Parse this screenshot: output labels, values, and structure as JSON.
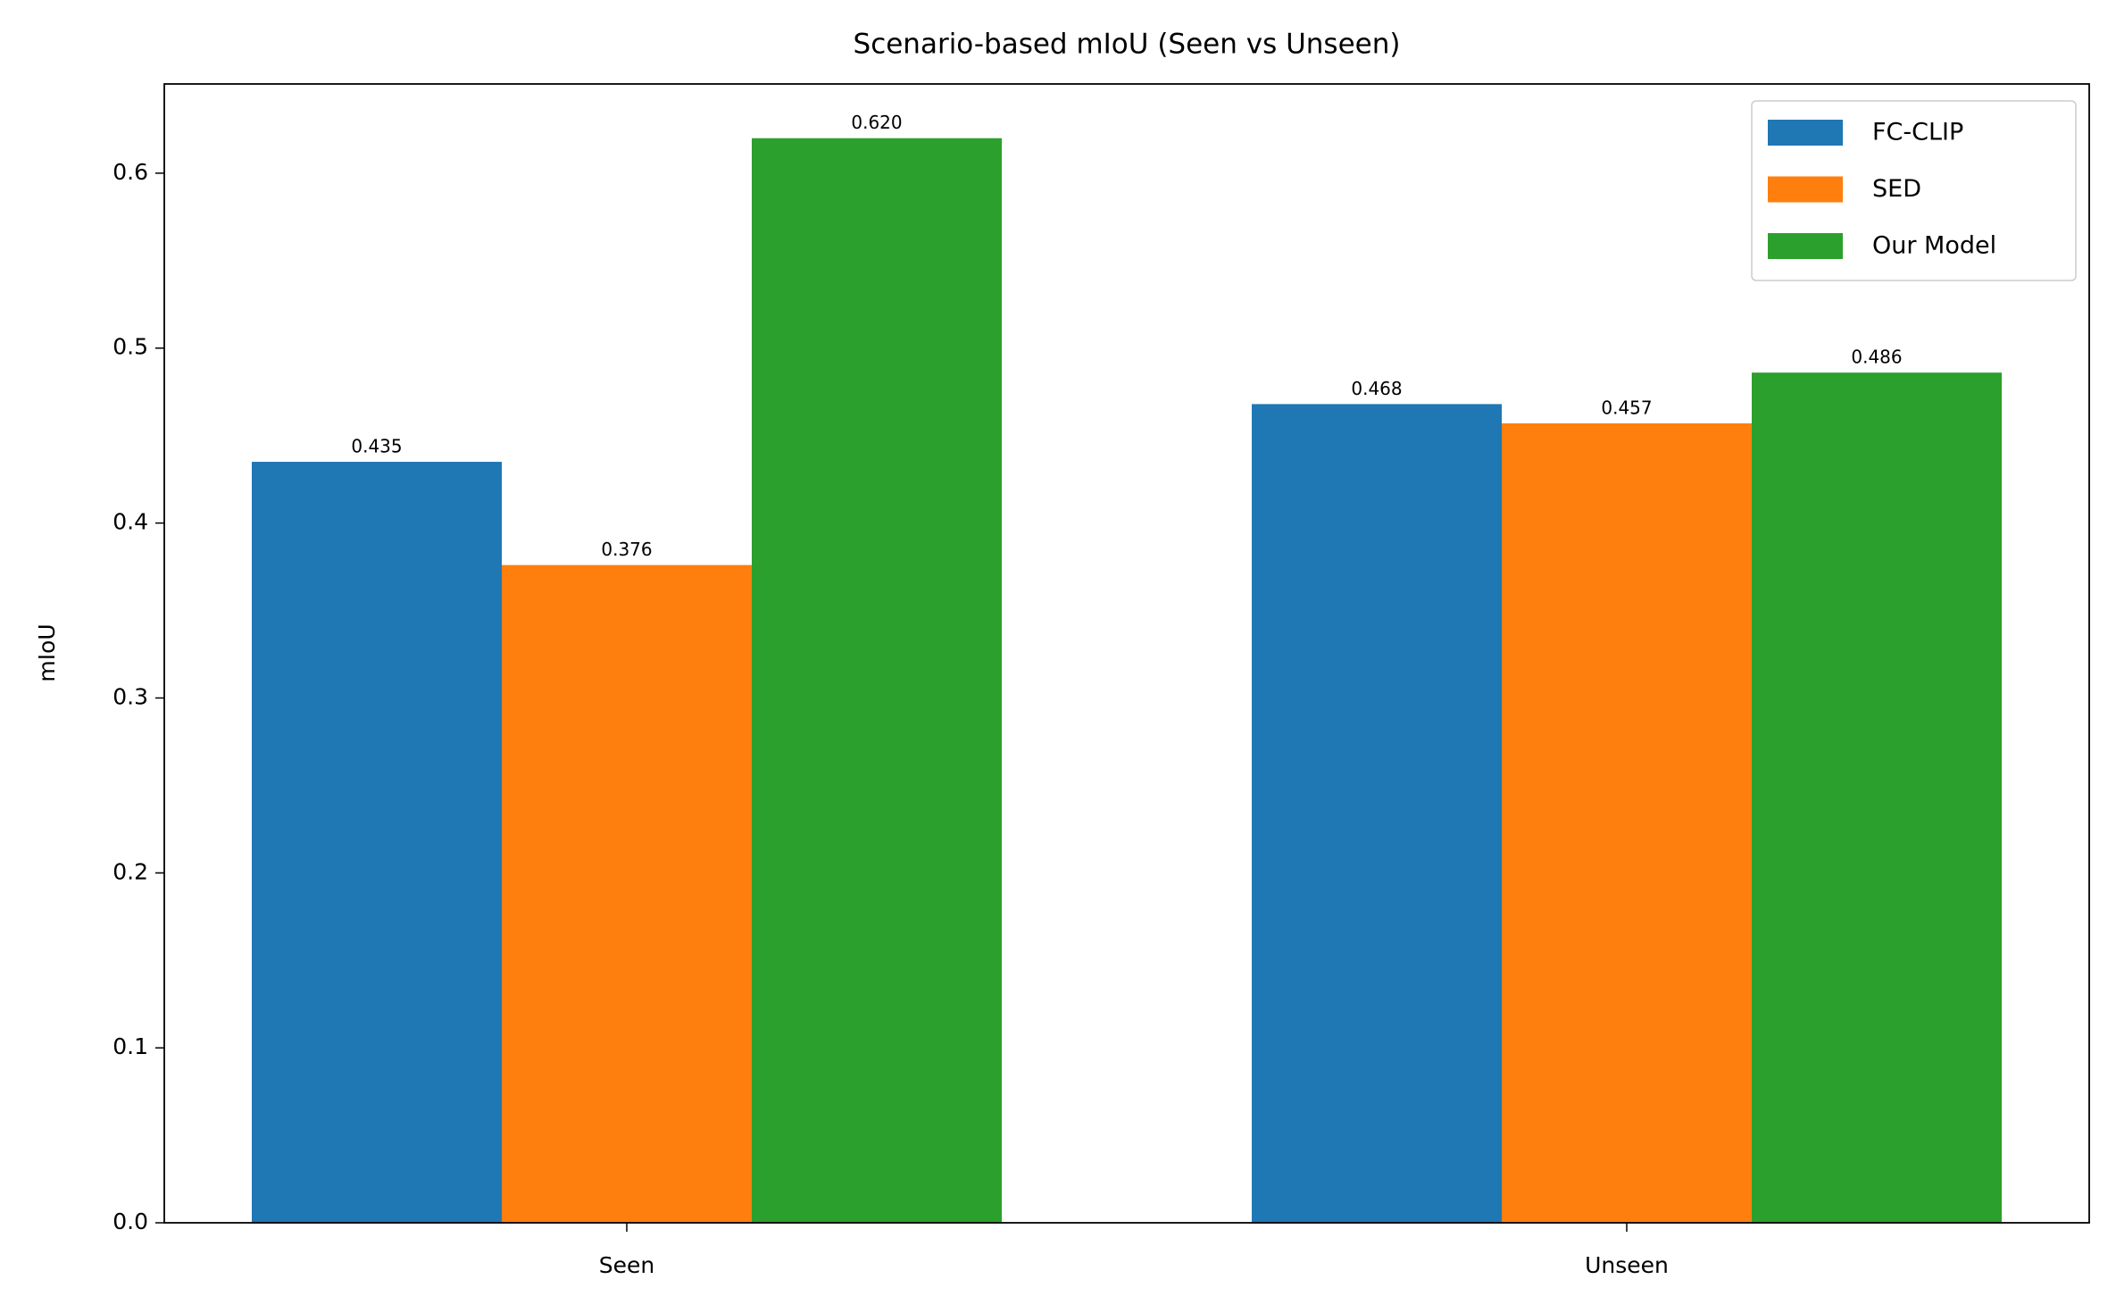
{
  "chart_data": {
    "type": "bar",
    "title": "Scenario-based mIoU (Seen vs Unseen)",
    "y_label": "mIoU",
    "categories": [
      "Seen",
      "Unseen"
    ],
    "series": [
      {
        "name": "FC-CLIP",
        "color": "#1f77b4",
        "values": [
          0.435,
          0.468
        ],
        "value_labels": [
          "0.435",
          "0.468"
        ]
      },
      {
        "name": "SED",
        "color": "#ff7f0e",
        "values": [
          0.376,
          0.457
        ],
        "value_labels": [
          "0.376",
          "0.457"
        ]
      },
      {
        "name": "Our Model",
        "color": "#2ca02c",
        "values": [
          0.62,
          0.486
        ],
        "value_labels": [
          "0.620",
          "0.486"
        ]
      }
    ],
    "ylim": [
      0,
      0.651
    ],
    "yticks": [
      {
        "value": 0,
        "label": "0.0"
      },
      {
        "value": 0.1,
        "label": "0.1"
      },
      {
        "value": 0.2,
        "label": "0.2"
      },
      {
        "value": 0.3,
        "label": "0.3"
      },
      {
        "value": 0.4,
        "label": "0.4"
      },
      {
        "value": 0.5,
        "label": "0.5"
      },
      {
        "value": 0.6,
        "label": "0.6"
      }
    ],
    "legend": "upper right",
    "grid": false
  }
}
